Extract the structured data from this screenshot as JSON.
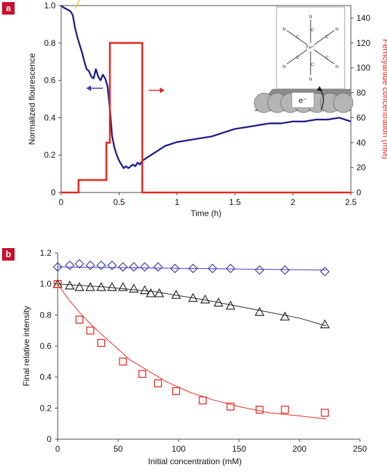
{
  "colors": {
    "fluorescence": "#1f1f8c",
    "ferricyanide": "#e8281e",
    "badge": "#c8102e",
    "diamonds": "#3b3bb0",
    "triangles": "#222222",
    "squares": "#e8281e",
    "yellow_marker": "#f2c230"
  },
  "chart_data": [
    {
      "panel": "a",
      "type": "line",
      "xlabel": "Time (h)",
      "ylabel": "Normalized flourescence",
      "y2label": "Ferricyanide concentration (mM)",
      "xlim": [
        0,
        2.5
      ],
      "ylim": [
        0,
        1.0
      ],
      "y2lim": [
        0,
        150
      ],
      "xticks": [
        "0",
        "0.5",
        "1",
        "1.5",
        "2",
        "2.5"
      ],
      "yticks": [
        "0",
        "0.2",
        "0.4",
        "0.6",
        "0.8",
        "1.0"
      ],
      "y2ticks": [
        "0",
        "20",
        "40",
        "60",
        "80",
        "100",
        "120",
        "140"
      ],
      "series": [
        {
          "axis": "left",
          "x": [
            0.0,
            0.02,
            0.05,
            0.08,
            0.1,
            0.12,
            0.14,
            0.16,
            0.18,
            0.2,
            0.22,
            0.24,
            0.26,
            0.28,
            0.3,
            0.32,
            0.34,
            0.36,
            0.38,
            0.4,
            0.42,
            0.44,
            0.46,
            0.48,
            0.5,
            0.52,
            0.54,
            0.56,
            0.58,
            0.6,
            0.62,
            0.64,
            0.66,
            0.68,
            0.7,
            0.75,
            0.8,
            0.85,
            0.9,
            0.95,
            1.0,
            1.1,
            1.2,
            1.3,
            1.4,
            1.5,
            1.6,
            1.7,
            1.8,
            1.9,
            2.0,
            2.1,
            2.2,
            2.3,
            2.4,
            2.45,
            2.5
          ],
          "y": [
            1.0,
            0.99,
            0.98,
            0.97,
            0.95,
            0.88,
            0.83,
            0.79,
            0.75,
            0.7,
            0.66,
            0.65,
            0.62,
            0.61,
            0.66,
            0.62,
            0.6,
            0.63,
            0.61,
            0.57,
            0.45,
            0.3,
            0.24,
            0.2,
            0.17,
            0.15,
            0.13,
            0.14,
            0.13,
            0.14,
            0.15,
            0.14,
            0.16,
            0.15,
            0.17,
            0.19,
            0.21,
            0.23,
            0.25,
            0.26,
            0.27,
            0.28,
            0.29,
            0.3,
            0.32,
            0.34,
            0.35,
            0.36,
            0.37,
            0.37,
            0.38,
            0.38,
            0.39,
            0.39,
            0.4,
            0.39,
            0.38
          ]
        },
        {
          "axis": "right",
          "x": [
            0.0,
            0.15,
            0.15,
            0.39,
            0.39,
            0.42,
            0.42,
            0.7,
            0.7,
            2.5
          ],
          "y": [
            0,
            0,
            10,
            10,
            40,
            40,
            120,
            120,
            0,
            0
          ]
        }
      ],
      "annotations": {
        "electron_label": "e⁻",
        "yellow_marker_x": 0.15
      }
    },
    {
      "panel": "b",
      "type": "scatter",
      "xlabel": "Initial concentration (mM)",
      "ylabel": "Final relative intensity",
      "xlim": [
        0,
        250
      ],
      "ylim": [
        0,
        1.2
      ],
      "xticks": [
        "0",
        "50",
        "100",
        "150",
        "200",
        "250"
      ],
      "yticks": [
        "0",
        "0.2",
        "0.4",
        "0.6",
        "0.8",
        "1.0",
        "1.2"
      ],
      "series": [
        {
          "marker": "diamond",
          "x": [
            0,
            10,
            18,
            27,
            36,
            45,
            54,
            63,
            72,
            83,
            97,
            112,
            128,
            143,
            167,
            188,
            221
          ],
          "y": [
            1.11,
            1.12,
            1.13,
            1.12,
            1.12,
            1.12,
            1.11,
            1.11,
            1.11,
            1.11,
            1.1,
            1.1,
            1.1,
            1.1,
            1.09,
            1.09,
            1.08
          ],
          "fit": [
            [
              0,
              1.11
            ],
            [
              222,
              1.09
            ]
          ]
        },
        {
          "marker": "triangle",
          "x": [
            0,
            10,
            18,
            27,
            36,
            45,
            54,
            63,
            72,
            77,
            84,
            98,
            112,
            122,
            133,
            143,
            167,
            188,
            221
          ],
          "y": [
            1.0,
            0.99,
            0.98,
            0.98,
            0.98,
            0.98,
            0.98,
            0.97,
            0.96,
            0.94,
            0.94,
            0.93,
            0.91,
            0.9,
            0.88,
            0.86,
            0.82,
            0.79,
            0.74
          ],
          "fit": [
            [
              0,
              1.0
            ],
            [
              40,
              0.98
            ],
            [
              80,
              0.95
            ],
            [
              120,
              0.9
            ],
            [
              160,
              0.84
            ],
            [
              200,
              0.78
            ],
            [
              222,
              0.73
            ]
          ]
        },
        {
          "marker": "square",
          "x": [
            0,
            18,
            27,
            36,
            54,
            70,
            83,
            98,
            120,
            143,
            167,
            188,
            221
          ],
          "y": [
            1.0,
            0.77,
            0.7,
            0.62,
            0.5,
            0.42,
            0.36,
            0.31,
            0.25,
            0.21,
            0.19,
            0.19,
            0.17
          ],
          "fit": [
            [
              0,
              1.0
            ],
            [
              10,
              0.89
            ],
            [
              20,
              0.8
            ],
            [
              30,
              0.72
            ],
            [
              40,
              0.65
            ],
            [
              50,
              0.58
            ],
            [
              60,
              0.51
            ],
            [
              75,
              0.44
            ],
            [
              90,
              0.37
            ],
            [
              110,
              0.3
            ],
            [
              130,
              0.25
            ],
            [
              150,
              0.21
            ],
            [
              175,
              0.17
            ],
            [
              200,
              0.15
            ],
            [
              222,
              0.13
            ]
          ]
        }
      ]
    }
  ]
}
